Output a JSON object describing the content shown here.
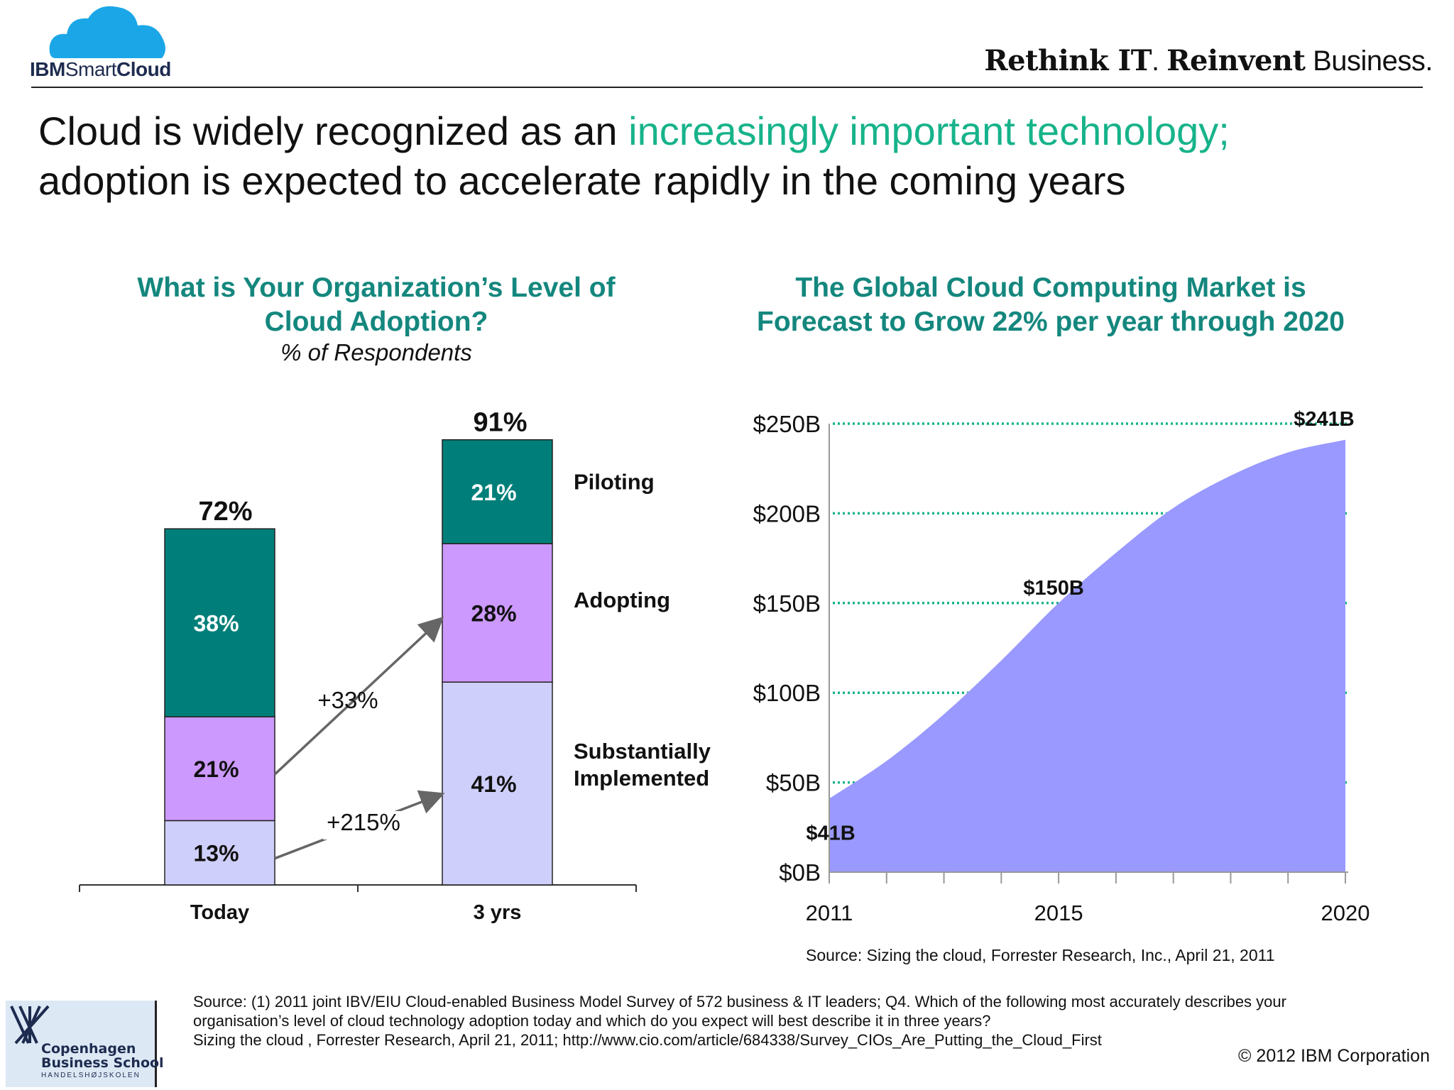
{
  "header": {
    "logo_ibm": "IBM",
    "logo_smart": "Smart",
    "logo_cloud": "Cloud",
    "tagline_rethink": "Rethink IT",
    "tagline_dot1": ".",
    "tagline_reinvent": "Reinvent",
    "tagline_business": "Business."
  },
  "headline": {
    "part1": "Cloud is widely recognized as an ",
    "accent": "increasingly important technology;",
    "line2": "adoption is expected to accelerate rapidly in the coming years"
  },
  "left_chart": {
    "title_line1": "What is Your Organization’s Level of",
    "title_line2": "Cloud Adoption?",
    "subtitle": "% of Respondents"
  },
  "right_chart": {
    "title_line1": "The Global Cloud Computing Market is",
    "title_line2": "Forecast to Grow 22% per year through 2020",
    "source": "Source:  Sizing the cloud, Forrester Research, Inc., April 21, 2011"
  },
  "chart_data": [
    {
      "type": "bar",
      "stacked": true,
      "categories": [
        "Today",
        "3 yrs"
      ],
      "series": [
        {
          "name": "Substantially Implemented",
          "values": [
            13,
            41
          ],
          "color": "#cfcffb"
        },
        {
          "name": "Adopting",
          "values": [
            21,
            28
          ],
          "color": "#cc99ff"
        },
        {
          "name": "Piloting",
          "values": [
            38,
            21
          ],
          "color": "#007f7a"
        }
      ],
      "totals": [
        72,
        91
      ],
      "legend_placement": "right",
      "annotations": [
        {
          "text": "+33%",
          "from": "Today / Adopting",
          "to": "3 yrs / Adopting"
        },
        {
          "text": "+215%",
          "from": "Today / Substantially Implemented",
          "to": "3 yrs / Substantially Implemented"
        }
      ]
    },
    {
      "type": "area",
      "x": [
        2011,
        2012,
        2013,
        2014,
        2015,
        2016,
        2017,
        2018,
        2019,
        2020
      ],
      "y": [
        41,
        62,
        88,
        118,
        150,
        178,
        203,
        221,
        234,
        241
      ],
      "xticks": [
        "2011",
        "2015",
        "2020"
      ],
      "yticks": [
        "$0B",
        "$50B",
        "$100B",
        "$150B",
        "$200B",
        "$250B"
      ],
      "ylim": [
        0,
        250
      ],
      "ytick_values": [
        0,
        50,
        100,
        150,
        200,
        250
      ],
      "data_labels": [
        {
          "x": 2011,
          "text": "$41B"
        },
        {
          "x": 2015,
          "text": "$150B"
        },
        {
          "x": 2020,
          "text": "$241B"
        }
      ],
      "color": "#9999ff",
      "grid_color": "#17b38a"
    }
  ],
  "footer": {
    "cbs_name_line1": "Copenhagen",
    "cbs_name_line2": "Business School",
    "cbs_sub": "HANDELSHØJSKOLEN",
    "footnote_line1": "Source: (1) 2011 joint IBV/EIU Cloud-enabled Business Model Survey of 572 business & IT leaders; Q4. Which of the following most accurately describes your",
    "footnote_line2": "organisation’s level of cloud technology adoption today and which do you expect will best describe it in three years?",
    "footnote_line3": "Sizing the cloud , Forrester Research, April 21, 2011;  http://www.cio.com/article/684338/Survey_CIOs_Are_Putting_the_Cloud_First",
    "copyright": "© 2012 IBM Corporation"
  }
}
